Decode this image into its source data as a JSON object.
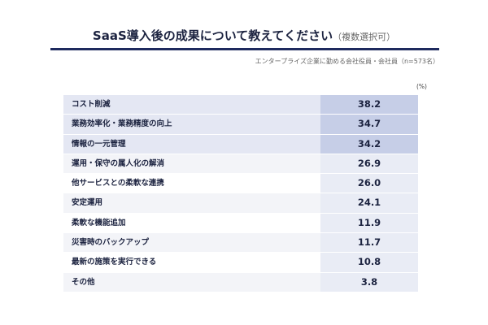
{
  "header": {
    "title": "SaaS導入後の成果について教えてください",
    "title_note": "（複数選択可）",
    "subtitle": "エンタープライズ企業に勤める会社役員・会社員（n=573名）",
    "unit": "(%)"
  },
  "table": {
    "rows": [
      [
        "コスト削減",
        "38.2"
      ],
      [
        "業務効率化・業務精度の向上",
        "34.7"
      ],
      [
        "情報の一元管理",
        "34.2"
      ],
      [
        "運用・保守の属人化の解消",
        "26.9"
      ],
      [
        "他サービスとの柔軟な連携",
        "26.0"
      ],
      [
        "安定運用",
        "24.1"
      ],
      [
        "柔軟な機能追加",
        "11.9"
      ],
      [
        "災害時のバックアップ",
        "11.7"
      ],
      [
        "最新の施策を実行できる",
        "10.8"
      ],
      [
        "その他",
        "3.8"
      ]
    ]
  }
}
